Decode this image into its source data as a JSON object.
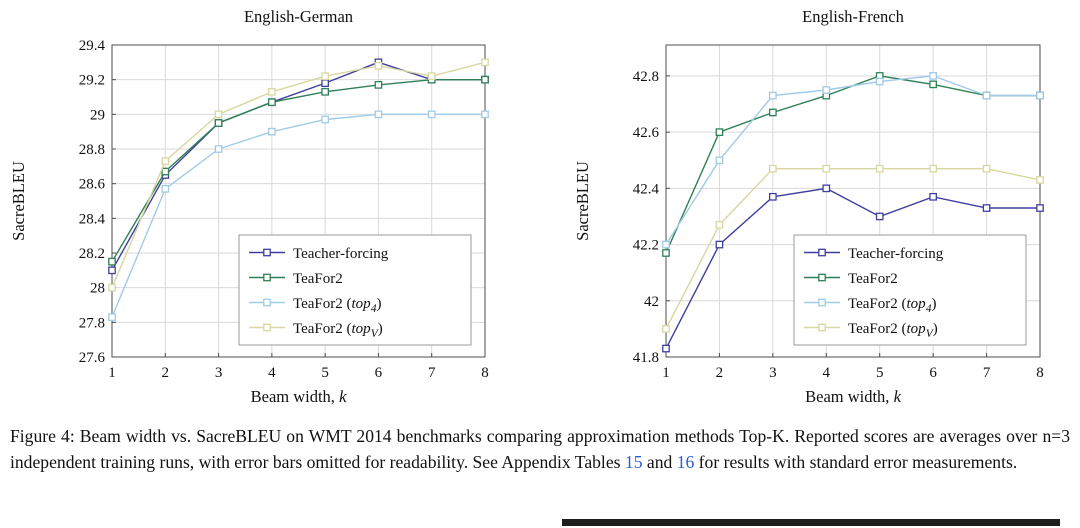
{
  "colors": {
    "grid": "#d9d9d9",
    "axis": "#4d4d4d",
    "legend_border": "#9a9a9a",
    "link": "#2b5fce"
  },
  "figure": {
    "caption": {
      "before_links": "Figure 4: Beam width vs. SacreBLEU on WMT 2014 benchmarks comparing approximation methods Top-K. Reported scores are averages over n=3 independent training runs, with error bars omitted for readability. See Appendix Tables ",
      "link_15": "15",
      "between_links": " and ",
      "link_16": "16",
      "after_links": " for results with standard error measurements."
    }
  },
  "chart_data": [
    {
      "id": "english-german",
      "type": "line",
      "title": "English-German",
      "ylabel": "SacreBLEU",
      "xlabel": {
        "text": "Beam width, ",
        "italic": "k"
      },
      "x": [
        1,
        2,
        3,
        4,
        5,
        6,
        7,
        8
      ],
      "xlim": [
        1,
        8
      ],
      "ylim": [
        27.6,
        29.4
      ],
      "yticks": [
        27.6,
        27.8,
        28,
        28.2,
        28.4,
        28.6,
        28.8,
        29,
        29.2,
        29.4
      ],
      "grid": true,
      "legend_position": "bottom-right",
      "series": [
        {
          "name": "Teacher-forcing",
          "legend": {
            "pre": "Teacher-forcing"
          },
          "color": "#3f3f9e",
          "marker": "square",
          "values": [
            28.1,
            28.65,
            28.95,
            29.07,
            29.18,
            29.3,
            29.2,
            29.2
          ]
        },
        {
          "name": "TeaFor2",
          "legend": {
            "pre": "TeaFor2"
          },
          "color": "#2f8056",
          "marker": "square",
          "values": [
            28.15,
            28.67,
            28.95,
            29.07,
            29.13,
            29.17,
            29.2,
            29.2
          ]
        },
        {
          "name": "TeaFor2 (top_4)",
          "legend": {
            "pre": "TeaFor2 (",
            "italic": "top",
            "sub": "4",
            "post": ")"
          },
          "color": "#a0cbe8",
          "marker": "square",
          "values": [
            27.83,
            28.57,
            28.8,
            28.9,
            28.97,
            29.0,
            29.0,
            29.0
          ]
        },
        {
          "name": "TeaFor2 (top_V)",
          "legend": {
            "pre": "TeaFor2 (",
            "italic": "top",
            "sub": "V",
            "post": ")"
          },
          "color": "#d9d79f",
          "marker": "square",
          "values": [
            28.0,
            28.73,
            29.0,
            29.13,
            29.22,
            29.28,
            29.22,
            29.3
          ]
        }
      ]
    },
    {
      "id": "english-french",
      "type": "line",
      "title": "English-French",
      "ylabel": "SacreBLEU",
      "xlabel": {
        "text": "Beam width, ",
        "italic": "k"
      },
      "x": [
        1,
        2,
        3,
        4,
        5,
        6,
        7,
        8
      ],
      "xlim": [
        1,
        8
      ],
      "ylim": [
        41.8,
        42.91
      ],
      "yticks": [
        41.8,
        42,
        42.2,
        42.4,
        42.6,
        42.8
      ],
      "grid": true,
      "legend_position": "bottom-right",
      "series": [
        {
          "name": "Teacher-forcing",
          "legend": {
            "pre": "Teacher-forcing"
          },
          "color": "#3f3f9e",
          "marker": "square",
          "values": [
            41.83,
            42.2,
            42.37,
            42.4,
            42.3,
            42.37,
            42.33,
            42.33
          ]
        },
        {
          "name": "TeaFor2",
          "legend": {
            "pre": "TeaFor2"
          },
          "color": "#2f8056",
          "marker": "square",
          "values": [
            42.17,
            42.6,
            42.67,
            42.73,
            42.8,
            42.77,
            42.73,
            42.73
          ]
        },
        {
          "name": "TeaFor2 (top_4)",
          "legend": {
            "pre": "TeaFor2 (",
            "italic": "top",
            "sub": "4",
            "post": ")"
          },
          "color": "#a0cbe8",
          "marker": "square",
          "values": [
            42.2,
            42.5,
            42.73,
            42.75,
            42.78,
            42.8,
            42.73,
            42.73
          ]
        },
        {
          "name": "TeaFor2 (top_V)",
          "legend": {
            "pre": "TeaFor2 (",
            "italic": "top",
            "sub": "V",
            "post": ")"
          },
          "color": "#d9d79f",
          "marker": "square",
          "values": [
            41.9,
            42.27,
            42.47,
            42.47,
            42.47,
            42.47,
            42.47,
            42.43
          ]
        }
      ]
    }
  ]
}
